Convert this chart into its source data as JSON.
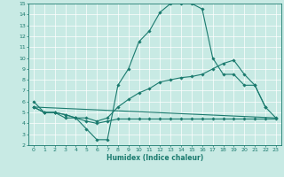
{
  "xlabel": "Humidex (Indice chaleur)",
  "xlim": [
    -0.5,
    23.5
  ],
  "ylim": [
    2,
    15
  ],
  "xticks": [
    0,
    1,
    2,
    3,
    4,
    5,
    6,
    7,
    8,
    9,
    10,
    11,
    12,
    13,
    14,
    15,
    16,
    17,
    18,
    19,
    20,
    21,
    22,
    23
  ],
  "yticks": [
    2,
    3,
    4,
    5,
    6,
    7,
    8,
    9,
    10,
    11,
    12,
    13,
    14,
    15
  ],
  "bg_color": "#c8eae4",
  "line_color": "#1a7a6e",
  "grid_color": "#b0d8d0",
  "line1_x": [
    0,
    1,
    2,
    3,
    4,
    5,
    6,
    7,
    8,
    9,
    10,
    11,
    12,
    13,
    14,
    15,
    16,
    17,
    18,
    19,
    20,
    21,
    22
  ],
  "line1_y": [
    6,
    5,
    5,
    4.5,
    4.5,
    3.5,
    2.5,
    2.5,
    7.5,
    9,
    11.5,
    12.5,
    14.2,
    15,
    15,
    15,
    14.5,
    10,
    8.5,
    8.5,
    7.5,
    7.5,
    5.5
  ],
  "line2_x": [
    0,
    1,
    2,
    3,
    4,
    5,
    6,
    7,
    8,
    9,
    10,
    11,
    12,
    13,
    14,
    15,
    16,
    17,
    18,
    19,
    20,
    21,
    22,
    23
  ],
  "line2_y": [
    5.5,
    5,
    5,
    4.8,
    4.5,
    4.5,
    4.2,
    4.5,
    5.5,
    6.2,
    6.8,
    7.2,
    7.8,
    8.0,
    8.2,
    8.3,
    8.5,
    9.0,
    9.5,
    9.8,
    8.5,
    7.5,
    5.5,
    4.5
  ],
  "line3_x": [
    0,
    1,
    2,
    3,
    4,
    5,
    6,
    7,
    8,
    9,
    10,
    11,
    12,
    13,
    14,
    15,
    16,
    17,
    18,
    19,
    20,
    21,
    22,
    23
  ],
  "line3_y": [
    5.5,
    5,
    5,
    4.8,
    4.5,
    4.2,
    4.0,
    4.2,
    4.4,
    4.4,
    4.4,
    4.4,
    4.4,
    4.4,
    4.4,
    4.4,
    4.4,
    4.4,
    4.4,
    4.4,
    4.4,
    4.4,
    4.4,
    4.4
  ],
  "line4_x": [
    0,
    23
  ],
  "line4_y": [
    5.5,
    4.5
  ]
}
